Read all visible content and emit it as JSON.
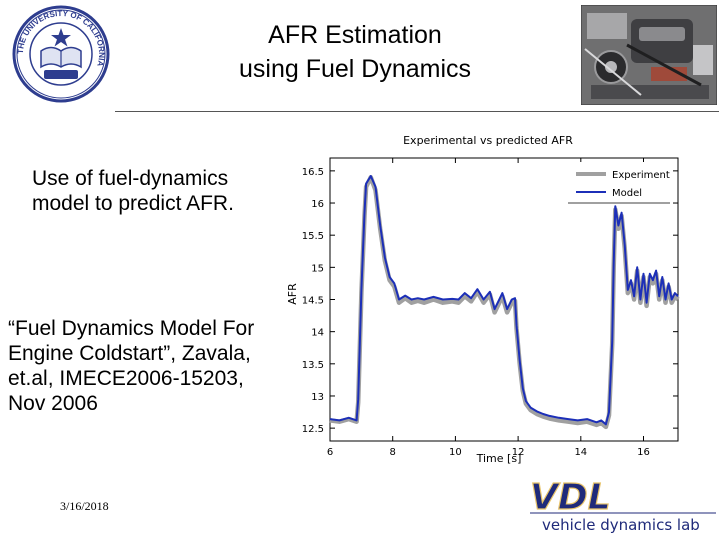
{
  "slide": {
    "title_line_1": "AFR Estimation",
    "title_line_2": "using Fuel Dynamics",
    "bullet_1": "Use of fuel-dynamics model to predict AFR.",
    "bullet_2": "“Fuel Dynamics Model For Engine Coldstart”, Zavala, et.al, IMECE2006-15203, Nov 2006",
    "date": "3/16/2018"
  },
  "logo": {
    "letters": "VDL",
    "subtitle": "vehicle dynamics lab",
    "color": "#1f2a7a",
    "accent": "#e8c46a"
  },
  "seal": {
    "ring_text": "THE UNIVERSITY OF CALIFORNIA",
    "color": "#2e3d8f"
  },
  "chart_data": {
    "type": "line",
    "title": "Experimental vs predicted AFR",
    "xlabel": "Time [s]",
    "ylabel": "AFR",
    "xlim": [
      6,
      17.1
    ],
    "ylim": [
      12.3,
      16.7
    ],
    "xticks": [
      6,
      8,
      10,
      12,
      14,
      16
    ],
    "xtick_labels": [
      "6",
      "8",
      "10",
      "12",
      "14",
      "16"
    ],
    "yticks": [
      12.5,
      13,
      13.5,
      14,
      14.5,
      15,
      15.5,
      16,
      16.5
    ],
    "ytick_labels": [
      "12.5",
      "13",
      "13.5",
      "14",
      "14.5",
      "15",
      "15.5",
      "16",
      "16.5"
    ],
    "grid": false,
    "legend_position": "top-right",
    "series": [
      {
        "name": "Experiment",
        "color": "#a0a0a0",
        "x": [
          6.0,
          6.3,
          6.6,
          6.85,
          6.9,
          7.0,
          7.1,
          7.15,
          7.3,
          7.45,
          7.6,
          7.75,
          7.9,
          8.05,
          8.2,
          8.4,
          8.6,
          8.8,
          9.0,
          9.3,
          9.6,
          9.9,
          10.1,
          10.3,
          10.5,
          10.7,
          10.9,
          11.1,
          11.25,
          11.4,
          11.5,
          11.65,
          11.8,
          11.9,
          11.95,
          12.05,
          12.15,
          12.25,
          12.4,
          12.6,
          12.8,
          13.0,
          13.3,
          13.6,
          13.9,
          14.2,
          14.5,
          14.65,
          14.8,
          14.9,
          15.0,
          15.05,
          15.1,
          15.2,
          15.3,
          15.4,
          15.5,
          15.6,
          15.7,
          15.8,
          15.9,
          16.0,
          16.1,
          16.2,
          16.3,
          16.4,
          16.5,
          16.6,
          16.7,
          16.8,
          16.9,
          17.0,
          17.1
        ],
        "y": [
          12.62,
          12.6,
          12.64,
          12.6,
          12.9,
          14.6,
          15.8,
          16.25,
          16.4,
          16.2,
          15.6,
          15.1,
          14.8,
          14.7,
          14.45,
          14.52,
          14.45,
          14.48,
          14.45,
          14.5,
          14.45,
          14.47,
          14.45,
          14.55,
          14.47,
          14.62,
          14.45,
          14.58,
          14.3,
          14.45,
          14.55,
          14.3,
          14.45,
          14.48,
          14.05,
          13.5,
          13.08,
          12.88,
          12.78,
          12.72,
          12.68,
          12.65,
          12.62,
          12.6,
          12.58,
          12.6,
          12.55,
          12.58,
          12.52,
          12.7,
          13.8,
          15.0,
          15.9,
          15.6,
          15.8,
          15.3,
          14.6,
          14.75,
          14.5,
          14.95,
          14.45,
          14.85,
          14.4,
          14.85,
          14.75,
          14.9,
          14.5,
          14.8,
          14.45,
          14.7,
          14.45,
          14.55,
          14.5
        ]
      },
      {
        "name": "Model",
        "color": "#1c2fb8",
        "x": [
          6.0,
          6.3,
          6.6,
          6.85,
          6.9,
          7.0,
          7.1,
          7.15,
          7.3,
          7.45,
          7.6,
          7.75,
          7.9,
          8.05,
          8.2,
          8.4,
          8.6,
          8.8,
          9.0,
          9.3,
          9.6,
          9.9,
          10.1,
          10.3,
          10.5,
          10.7,
          10.9,
          11.1,
          11.25,
          11.4,
          11.5,
          11.65,
          11.8,
          11.9,
          11.95,
          12.05,
          12.15,
          12.25,
          12.4,
          12.6,
          12.8,
          13.0,
          13.3,
          13.6,
          13.9,
          14.2,
          14.5,
          14.65,
          14.8,
          14.9,
          15.0,
          15.05,
          15.1,
          15.2,
          15.3,
          15.4,
          15.5,
          15.6,
          15.7,
          15.8,
          15.9,
          16.0,
          16.1,
          16.2,
          16.3,
          16.4,
          16.5,
          16.6,
          16.7,
          16.8,
          16.9,
          17.0,
          17.1
        ],
        "y": [
          12.64,
          12.62,
          12.66,
          12.62,
          12.95,
          14.65,
          15.85,
          16.3,
          16.42,
          16.25,
          15.65,
          15.15,
          14.85,
          14.75,
          14.5,
          14.56,
          14.5,
          14.52,
          14.5,
          14.54,
          14.5,
          14.51,
          14.5,
          14.6,
          14.52,
          14.66,
          14.5,
          14.62,
          14.35,
          14.5,
          14.6,
          14.35,
          14.5,
          14.52,
          14.1,
          13.55,
          13.12,
          12.92,
          12.82,
          12.76,
          12.72,
          12.69,
          12.66,
          12.64,
          12.62,
          12.64,
          12.59,
          12.62,
          12.56,
          12.75,
          13.85,
          15.05,
          15.95,
          15.65,
          15.85,
          15.35,
          14.65,
          14.8,
          14.55,
          15.0,
          14.5,
          14.9,
          14.45,
          14.9,
          14.8,
          14.95,
          14.55,
          14.85,
          14.5,
          14.75,
          14.5,
          14.6,
          14.55
        ]
      }
    ]
  }
}
